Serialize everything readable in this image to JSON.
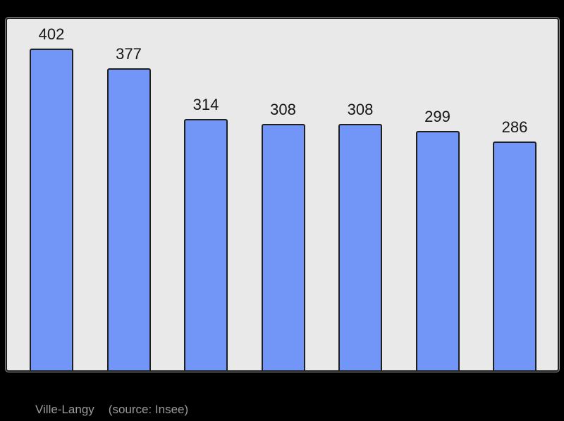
{
  "chart_data": {
    "type": "bar",
    "values": [
      402,
      377,
      314,
      308,
      308,
      299,
      286
    ],
    "data_labels": [
      "402",
      "377",
      "314",
      "308",
      "308",
      "299",
      "286"
    ],
    "title": "",
    "xlabel": "",
    "ylabel": "",
    "ylim": [
      0,
      440
    ],
    "grid": false,
    "legend": false,
    "bar_color": "#7296f8",
    "bar_border_color": "#1f1f1f",
    "plot_background": "#e9e9e9",
    "page_background": "#000000",
    "label_color": "#151515"
  },
  "caption": {
    "place": "Ville-Langy",
    "source": "(source: Insee)",
    "color": "#9b9b9b"
  }
}
